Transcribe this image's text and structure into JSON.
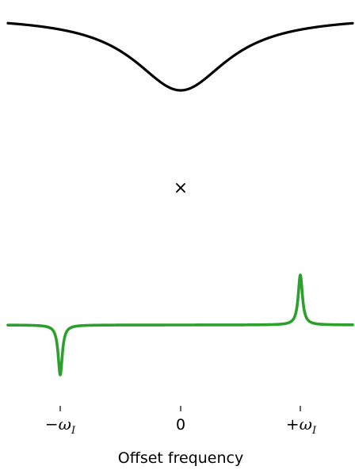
{
  "colors": {
    "lorentzian": "#000000",
    "dispersion": "#2ca02c"
  },
  "operator": "×",
  "x_axis": {
    "title": "Offset frequency",
    "ticks": [
      {
        "id": "minus",
        "prefix": "−",
        "symbol": "ω",
        "sub": "I"
      },
      {
        "id": "zero",
        "text": "0"
      },
      {
        "id": "plus",
        "prefix": "+",
        "symbol": "ω",
        "sub": "I"
      }
    ]
  }
}
